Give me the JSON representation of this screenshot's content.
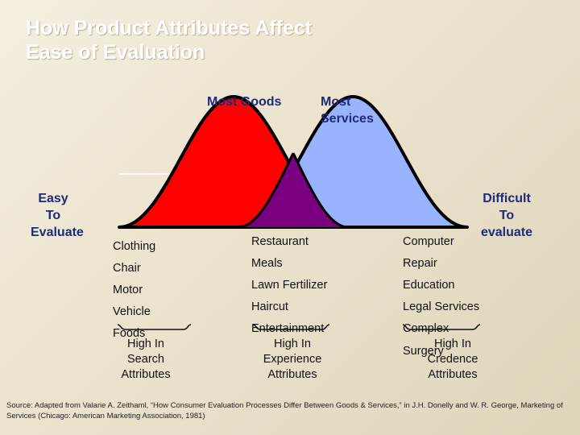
{
  "title": {
    "line1": "How Product Attributes Affect",
    "line2": "Ease of Evaluation"
  },
  "distribution_labels": {
    "goods": "Most Goods",
    "services_line1": "Most",
    "services_line2": "Services"
  },
  "ends": {
    "left": [
      "Easy",
      "To",
      "Evaluate"
    ],
    "right": [
      "Difficult",
      "To",
      "evaluate"
    ]
  },
  "columns": [
    {
      "items": [
        "Clothing",
        "Chair",
        "Motor",
        "Vehicle",
        "Foods"
      ],
      "attribute": [
        "High In",
        "Search",
        "Attributes"
      ]
    },
    {
      "items": [
        "Restaurant",
        "Meals",
        "Lawn Fertilizer",
        "Haircut",
        "Entertainment"
      ],
      "attribute": [
        "High In",
        "Experience",
        "Attributes"
      ]
    },
    {
      "items": [
        "Computer",
        "Repair",
        "Education",
        "Legal Services",
        "Complex",
        "Surgery"
      ],
      "attribute": [
        "High In",
        "Credence",
        "Attributes"
      ]
    }
  ],
  "colors": {
    "goods_curve": "#ff0000",
    "services_curve": "#99b3ff",
    "overlap": "#7a0080",
    "label_text": "#1f2a78"
  },
  "source": "Source: Adapted from Valarie A. Zeithaml, “How Consumer Evaluation Processes Differ Between Goods & Services,” in J.H. Donelly and W. R. George, Marketing of Services (Chicago: American Marketing Association, 1981)"
}
